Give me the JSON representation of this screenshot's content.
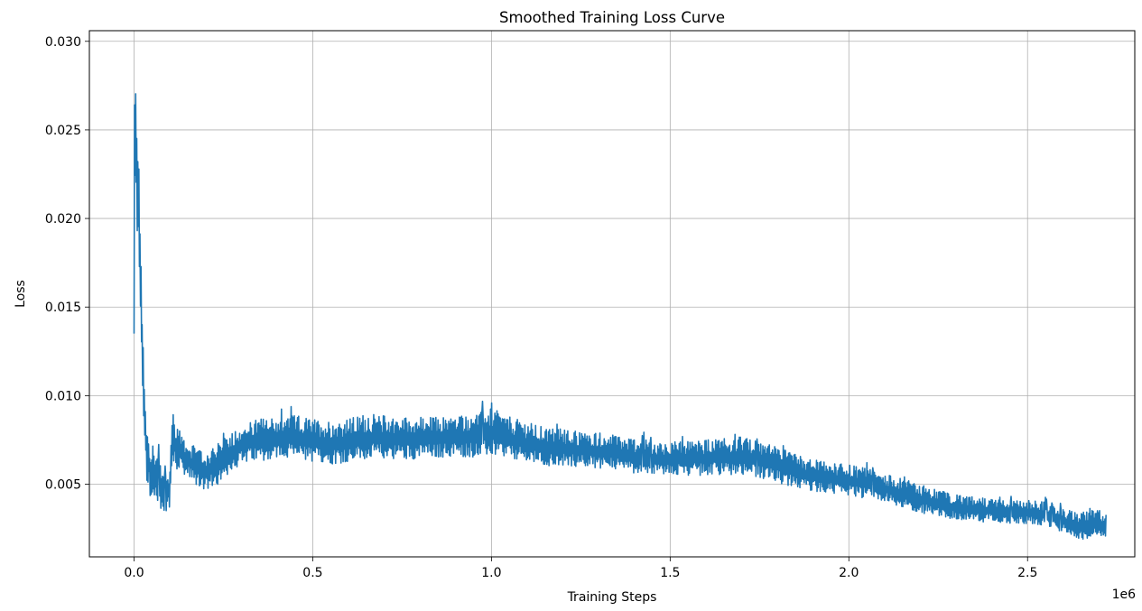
{
  "chart_data": {
    "type": "line",
    "title": "Smoothed Training Loss Curve",
    "xlabel": "Training Steps",
    "ylabel": "Loss",
    "x_offset_label": "1e6",
    "xlim": [
      -125000,
      2800000
    ],
    "ylim": [
      0.0009,
      0.0306
    ],
    "x_ticks": [
      0,
      500000,
      1000000,
      1500000,
      2000000,
      2500000
    ],
    "x_tick_labels": [
      "0.0",
      "0.5",
      "1.0",
      "1.5",
      "2.0",
      "2.5"
    ],
    "y_ticks": [
      0.005,
      0.01,
      0.015,
      0.02,
      0.025,
      0.03
    ],
    "y_tick_labels": [
      "0.005",
      "0.010",
      "0.015",
      "0.020",
      "0.025",
      "0.030"
    ],
    "grid": true,
    "line_color": "#1f77b4",
    "series": [
      {
        "x": [
          0,
          2000,
          5000,
          10000,
          15000,
          20000,
          25000,
          30000,
          35000,
          40000,
          45000,
          50000,
          60000,
          70000,
          80000,
          90000,
          100000,
          105000,
          110000,
          120000,
          130000,
          150000,
          175000,
          200000,
          225000,
          250000,
          275000,
          300000,
          350000,
          400000,
          450000,
          500000,
          550000,
          600000,
          650000,
          700000,
          750000,
          800000,
          850000,
          900000,
          950000,
          1000000,
          1050000,
          1100000,
          1150000,
          1200000,
          1250000,
          1300000,
          1350000,
          1400000,
          1450000,
          1500000,
          1550000,
          1600000,
          1650000,
          1700000,
          1750000,
          1800000,
          1850000,
          1900000,
          1950000,
          2000000,
          2050000,
          2100000,
          2150000,
          2200000,
          2250000,
          2300000,
          2350000,
          2400000,
          2450000,
          2500000,
          2550000,
          2600000,
          2650000,
          2700000,
          2720000
        ],
        "y_low": [
          0.0135,
          0.02,
          0.02,
          0.018,
          0.016,
          0.013,
          0.009,
          0.006,
          0.005,
          0.0045,
          0.004,
          0.0038,
          0.0035,
          0.0034,
          0.0034,
          0.0034,
          0.0034,
          0.0055,
          0.0058,
          0.0056,
          0.0055,
          0.0052,
          0.0048,
          0.0045,
          0.0047,
          0.0052,
          0.0057,
          0.006,
          0.0062,
          0.0063,
          0.0063,
          0.0061,
          0.006,
          0.0061,
          0.0062,
          0.0063,
          0.0063,
          0.0063,
          0.0064,
          0.0064,
          0.0064,
          0.0065,
          0.0063,
          0.0061,
          0.0059,
          0.0059,
          0.0059,
          0.0058,
          0.0057,
          0.0055,
          0.0054,
          0.0054,
          0.0054,
          0.0054,
          0.0054,
          0.0054,
          0.0052,
          0.005,
          0.0047,
          0.0045,
          0.0044,
          0.0043,
          0.0041,
          0.0039,
          0.0036,
          0.0033,
          0.0031,
          0.0029,
          0.0028,
          0.0028,
          0.0027,
          0.0027,
          0.0025,
          0.0022,
          0.0018,
          0.0019,
          0.002
        ],
        "y_high": [
          0.0135,
          0.0293,
          0.027,
          0.026,
          0.022,
          0.017,
          0.014,
          0.011,
          0.009,
          0.0082,
          0.0078,
          0.0075,
          0.007,
          0.0068,
          0.0062,
          0.0055,
          0.006,
          0.0088,
          0.0092,
          0.0085,
          0.008,
          0.0075,
          0.007,
          0.0069,
          0.0071,
          0.0076,
          0.008,
          0.0084,
          0.0087,
          0.0088,
          0.0089,
          0.0087,
          0.0086,
          0.0087,
          0.009,
          0.0089,
          0.0088,
          0.0088,
          0.0088,
          0.0089,
          0.009,
          0.0093,
          0.0088,
          0.0085,
          0.0082,
          0.0081,
          0.008,
          0.0079,
          0.0078,
          0.0076,
          0.0075,
          0.0074,
          0.0074,
          0.0075,
          0.0076,
          0.0077,
          0.0074,
          0.0071,
          0.0067,
          0.0064,
          0.0062,
          0.0061,
          0.0059,
          0.0056,
          0.0053,
          0.005,
          0.0047,
          0.0044,
          0.0043,
          0.0042,
          0.0041,
          0.0041,
          0.004,
          0.0036,
          0.0034,
          0.0036,
          0.0033
        ]
      }
    ]
  }
}
